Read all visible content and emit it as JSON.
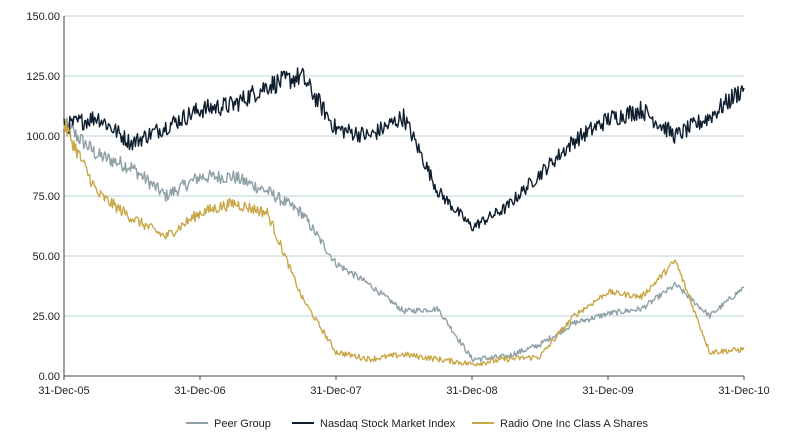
{
  "chart_data": {
    "type": "line",
    "title": "",
    "xlabel": "",
    "ylabel": "",
    "x_ticks": [
      "31-Dec-05",
      "31-Dec-06",
      "31-Dec-07",
      "31-Dec-08",
      "31-Dec-09",
      "31-Dec-10"
    ],
    "y_ticks": [
      "0.00",
      "25.00",
      "50.00",
      "75.00",
      "100.00",
      "125.00",
      "150.00"
    ],
    "ylim": [
      0,
      150
    ],
    "xlim": [
      "2005-12-31",
      "2010-12-31"
    ],
    "grid": "horizontal",
    "legend_position": "bottom",
    "x": [
      "2005-12-31",
      "2006-03-31",
      "2006-06-30",
      "2006-09-30",
      "2006-12-31",
      "2007-03-31",
      "2007-06-30",
      "2007-09-30",
      "2007-12-31",
      "2008-03-31",
      "2008-06-30",
      "2008-09-30",
      "2008-12-31",
      "2009-03-31",
      "2009-06-30",
      "2009-09-30",
      "2009-12-31",
      "2010-03-31",
      "2010-06-30",
      "2010-09-30",
      "2010-12-31"
    ],
    "series": [
      {
        "name": "Peer Group",
        "color": "#8fa0a6",
        "values": [
          105,
          92,
          87,
          75,
          83,
          83,
          77,
          68,
          47,
          38,
          27,
          28,
          7,
          8,
          13,
          22,
          26,
          28,
          38,
          25,
          37
        ]
      },
      {
        "name": "Nasdaq Stock Market Index",
        "color": "#0f1e2e",
        "values": [
          104,
          108,
          97,
          104,
          111,
          113,
          121,
          125,
          103,
          100,
          108,
          77,
          62,
          70,
          84,
          98,
          107,
          111,
          100,
          108,
          120
        ]
      },
      {
        "name": "Radio One Inc Class A Shares",
        "color": "#c9a84a",
        "values": [
          105,
          76,
          66,
          58,
          68,
          72,
          68,
          33,
          10,
          7,
          9,
          7,
          5,
          7,
          8,
          25,
          35,
          33,
          48,
          10,
          11
        ]
      }
    ]
  }
}
